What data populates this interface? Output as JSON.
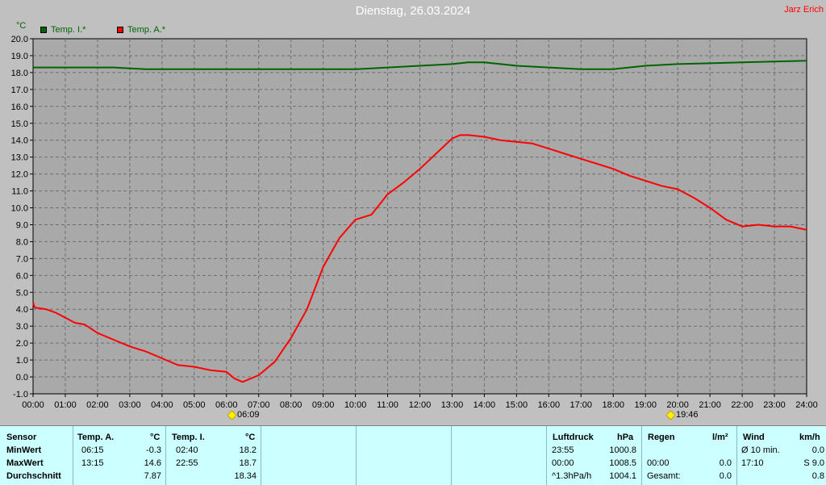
{
  "header": {
    "title": "Dienstag, 26.03.2024",
    "author": "Jarz Erich",
    "unit": "°C"
  },
  "legend": [
    {
      "label": "Temp. I.*",
      "color": "#006400"
    },
    {
      "label": "Temp. A.*",
      "color": "#ff0000"
    }
  ],
  "markers": {
    "sunrise": "06:09",
    "sunset": "19:46"
  },
  "chart_data": {
    "type": "line",
    "title": "Dienstag, 26.03.2024",
    "ylabel": "°C",
    "ylim": [
      -1.0,
      20.0
    ],
    "yticks": [
      "20.0",
      "19.0",
      "18.0",
      "17.0",
      "16.0",
      "15.0",
      "14.0",
      "13.0",
      "12.0",
      "11.0",
      "10.0",
      "9.0",
      "8.0",
      "7.0",
      "6.0",
      "5.0",
      "4.0",
      "3.0",
      "2.0",
      "1.0",
      "0.0",
      "-1.0"
    ],
    "xticks": [
      "00:00",
      "01:00",
      "02:00",
      "03:00",
      "04:00",
      "05:00",
      "06:00",
      "07:00",
      "08:00",
      "09:00",
      "10:00",
      "11:00",
      "12:00",
      "13:00",
      "14:00",
      "15:00",
      "16:00",
      "17:00",
      "18:00",
      "19:00",
      "20:00",
      "21:00",
      "22:00",
      "23:00",
      "24:00"
    ],
    "grid": true,
    "series": [
      {
        "name": "Temp. I.*",
        "color": "#006400",
        "x": [
          0,
          2.5,
          3,
          3.5,
          6,
          7,
          9,
          10,
          10.5,
          11,
          12,
          13,
          13.5,
          14,
          14.5,
          15,
          16,
          17,
          18,
          19,
          20,
          21,
          22,
          23,
          24
        ],
        "y": [
          18.3,
          18.3,
          18.25,
          18.2,
          18.2,
          18.2,
          18.2,
          18.2,
          18.25,
          18.3,
          18.4,
          18.5,
          18.6,
          18.6,
          18.5,
          18.4,
          18.3,
          18.2,
          18.2,
          18.4,
          18.5,
          18.55,
          18.6,
          18.65,
          18.7
        ]
      },
      {
        "name": "Temp. A.*",
        "color": "#ff0000",
        "x": [
          0,
          0.05,
          0.4,
          0.7,
          1.0,
          1.3,
          1.6,
          2.0,
          2.5,
          3.0,
          3.5,
          4.0,
          4.5,
          5.0,
          5.5,
          6.0,
          6.25,
          6.5,
          7.0,
          7.5,
          8.0,
          8.5,
          9.0,
          9.5,
          10.0,
          10.5,
          11.0,
          11.5,
          12.0,
          12.5,
          13.0,
          13.25,
          13.5,
          14.0,
          14.5,
          15.0,
          15.5,
          16.0,
          16.5,
          17.0,
          17.5,
          18.0,
          18.5,
          19.0,
          19.5,
          20.0,
          20.5,
          21.0,
          21.5,
          22.0,
          22.5,
          23.0,
          23.5,
          24.0
        ],
        "y": [
          4.4,
          4.1,
          4.0,
          3.8,
          3.5,
          3.2,
          3.1,
          2.6,
          2.2,
          1.8,
          1.5,
          1.1,
          0.7,
          0.6,
          0.4,
          0.3,
          -0.1,
          -0.3,
          0.1,
          0.9,
          2.3,
          4.0,
          6.5,
          8.2,
          9.3,
          9.6,
          10.8,
          11.5,
          12.3,
          13.2,
          14.1,
          14.3,
          14.3,
          14.2,
          14.0,
          13.9,
          13.8,
          13.5,
          13.2,
          12.9,
          12.6,
          12.3,
          11.9,
          11.6,
          11.3,
          11.1,
          10.6,
          10.0,
          9.3,
          8.9,
          9.0,
          8.9,
          8.9,
          8.7
        ]
      }
    ]
  },
  "stats": {
    "headers": {
      "sensor": "Sensor",
      "temp_a": "Temp. A.",
      "unit_c": "°C",
      "temp_i": "Temp. I.",
      "luftdruck": "Luftdruck",
      "hpa": "hPa",
      "regen": "Regen",
      "lm2": "l/m²",
      "wind": "Wind",
      "kmh": "km/h"
    },
    "rows": [
      {
        "label": "MinWert",
        "ta_time": "06:15",
        "ta_val": "-0.3",
        "ti_time": "02:40",
        "ti_val": "18.2",
        "p_time": "23:55",
        "p_val": "1000.8",
        "r_time": "",
        "r_val": "",
        "w_time": "Ø 10 min.",
        "w_val": "0.0"
      },
      {
        "label": "MaxWert",
        "ta_time": "13:15",
        "ta_val": "14.6",
        "ti_time": "22:55",
        "ti_val": "18.7",
        "p_time": "00:00",
        "p_val": "1008.5",
        "r_time": "00:00",
        "r_val": "0.0",
        "w_time": "17:10",
        "w_val": "S 9.0"
      },
      {
        "label": "Durchschnitt",
        "ta_time": "",
        "ta_val": "7.87",
        "ti_time": "",
        "ti_val": "18.34",
        "p_time": "^1.3hPa/h",
        "p_val": "1004.1",
        "r_time": "Gesamt:",
        "r_val": "0.0",
        "w_time": "",
        "w_val": "0.8"
      }
    ]
  }
}
